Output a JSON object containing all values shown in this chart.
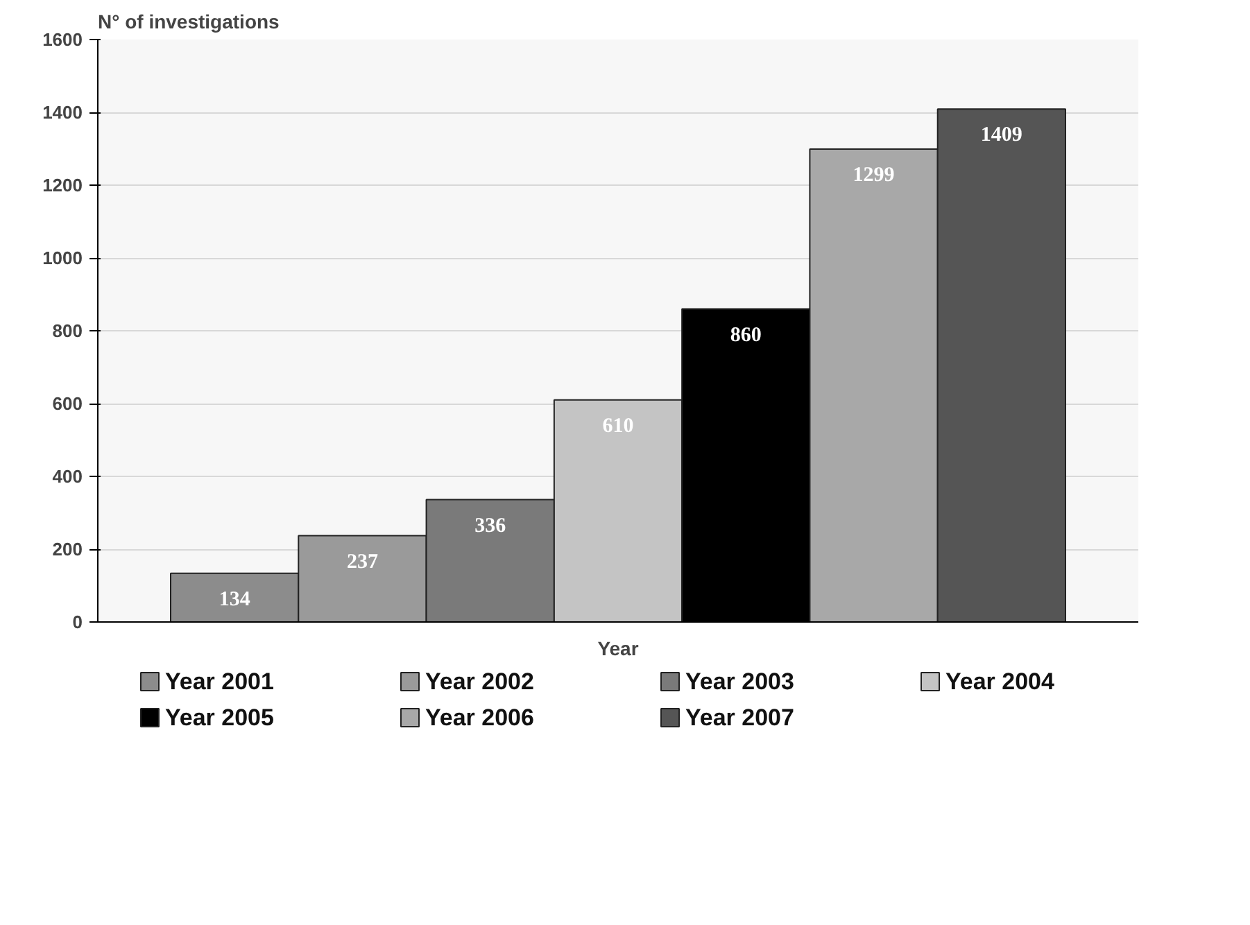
{
  "chart_data": {
    "type": "bar",
    "ylabel": "N° of investigations",
    "xlabel": "Year",
    "categories": [
      null
    ],
    "series": [
      {
        "name": "Year 2001",
        "color": "#8c8c8c",
        "values": [
          134
        ]
      },
      {
        "name": "Year 2002",
        "color": "#9a9a9a",
        "values": [
          237
        ]
      },
      {
        "name": "Year 2003",
        "color": "#7a7a7a",
        "values": [
          336
        ]
      },
      {
        "name": "Year 2004",
        "color": "#c4c4c4",
        "values": [
          610
        ]
      },
      {
        "name": "Year 2005",
        "color": "#000000",
        "values": [
          860
        ]
      },
      {
        "name": "Year 2006",
        "color": "#a8a8a8",
        "values": [
          1299
        ]
      },
      {
        "name": "Year 2007",
        "color": "#555555",
        "values": [
          1409
        ]
      }
    ],
    "ylim": [
      0,
      1600
    ],
    "yticks": [
      0,
      200,
      400,
      600,
      800,
      1000,
      1200,
      1400,
      1600
    ],
    "grid": "y",
    "legend": "bottom",
    "data_labels": true
  }
}
